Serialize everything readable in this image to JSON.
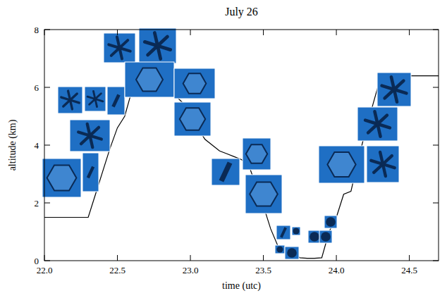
{
  "chart_data": {
    "type": "line",
    "title": "July 26",
    "x_label": "time (utc)",
    "y_label": "altitude (km)",
    "x": [
      22.0,
      22.1,
      22.2,
      22.3,
      22.35,
      22.4,
      22.45,
      22.5,
      22.55,
      22.6,
      22.7,
      22.8,
      22.9,
      23.0,
      23.05,
      23.1,
      23.15,
      23.2,
      23.25,
      23.3,
      23.35,
      23.4,
      23.45,
      23.5,
      23.55,
      23.6,
      23.65,
      23.7,
      23.75,
      23.8,
      23.85,
      23.9,
      23.95,
      24.0,
      24.05,
      24.1,
      24.15,
      24.2,
      24.25,
      24.3,
      24.4,
      24.5,
      24.6,
      24.7
    ],
    "values": [
      1.5,
      1.5,
      1.5,
      1.5,
      2.3,
      3.1,
      3.9,
      4.6,
      5.0,
      5.9,
      6.1,
      6.0,
      5.7,
      5.2,
      4.6,
      4.2,
      4.0,
      3.8,
      3.7,
      3.6,
      3.5,
      3.3,
      2.6,
      1.9,
      1.1,
      0.5,
      0.3,
      0.3,
      0.1,
      0.08,
      0.08,
      0.1,
      1.0,
      1.5,
      2.3,
      2.4,
      3.5,
      4.5,
      5.4,
      6.3,
      6.4,
      6.4,
      6.4,
      6.4
    ],
    "color": "#000000",
    "xlim": [
      22.0,
      24.7
    ],
    "xticks": [
      {
        "value": 22.0,
        "label": "22.0"
      },
      {
        "value": 22.5,
        "label": "22.5"
      },
      {
        "value": 23.0,
        "label": "23.0"
      },
      {
        "value": 23.5,
        "label": "23.5"
      },
      {
        "value": 24.0,
        "label": "24.0"
      },
      {
        "value": 24.5,
        "label": "24.5"
      }
    ],
    "ylim": [
      0,
      8
    ],
    "yticks": [
      0,
      2,
      4,
      6,
      8
    ],
    "grid": false
  }
}
